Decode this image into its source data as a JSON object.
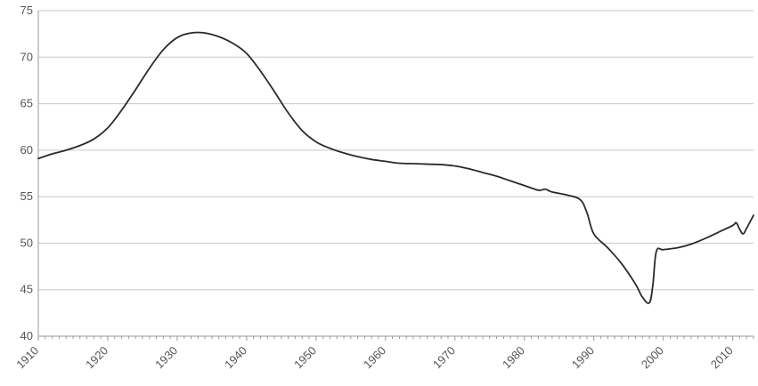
{
  "chart_data": {
    "type": "line",
    "title": "",
    "xlabel": "",
    "ylabel": "",
    "xlim": [
      1910,
      2013
    ],
    "ylim": [
      40,
      75
    ],
    "x_ticks": [
      1910,
      1920,
      1930,
      1940,
      1950,
      1960,
      1970,
      1980,
      1990,
      2000,
      2010
    ],
    "x_tick_labels": [
      "1910",
      "1920",
      "1930",
      "1940",
      "1950",
      "1960",
      "1970",
      "1980",
      "1990",
      "2000",
      "2010"
    ],
    "y_ticks": [
      40,
      45,
      50,
      55,
      60,
      65,
      70,
      75
    ],
    "y_tick_labels": [
      "40",
      "45",
      "50",
      "55",
      "60",
      "65",
      "70",
      "75"
    ],
    "grid": "horizontal",
    "legend": "none",
    "colors": {
      "line": "#2a2a2a",
      "grid": "#c8c8c8",
      "axis": "#999999"
    },
    "series": [
      {
        "x": [
          1910,
          1912,
          1914,
          1916,
          1918,
          1920,
          1922,
          1924,
          1926,
          1928,
          1930,
          1932,
          1934,
          1936,
          1938,
          1940,
          1942,
          1944,
          1946,
          1948,
          1950,
          1952,
          1954,
          1956,
          1958,
          1960,
          1962,
          1964,
          1966,
          1968,
          1970,
          1972,
          1974,
          1976,
          1978,
          1980,
          1982,
          1983,
          1984,
          1986,
          1988,
          1989,
          1990,
          1992,
          1994,
          1996,
          1997,
          1998,
          1998.5,
          1999,
          2000,
          2002,
          2004,
          2006,
          2008,
          2010,
          2010.5,
          2011,
          2011.5,
          2012,
          2013
        ],
        "y": [
          59.1,
          59.6,
          60.0,
          60.5,
          61.2,
          62.4,
          64.3,
          66.5,
          68.8,
          70.8,
          72.1,
          72.6,
          72.6,
          72.2,
          71.5,
          70.4,
          68.5,
          66.3,
          64.0,
          62.1,
          60.9,
          60.2,
          59.7,
          59.3,
          59.0,
          58.8,
          58.6,
          58.55,
          58.5,
          58.45,
          58.3,
          58.0,
          57.6,
          57.2,
          56.7,
          56.2,
          55.7,
          55.8,
          55.5,
          55.2,
          54.7,
          53.3,
          51.0,
          49.5,
          47.8,
          45.6,
          44.2,
          43.6,
          45.5,
          49.1,
          49.3,
          49.5,
          49.9,
          50.5,
          51.2,
          51.9,
          52.2,
          51.5,
          51.0,
          51.6,
          53.0
        ]
      }
    ]
  }
}
